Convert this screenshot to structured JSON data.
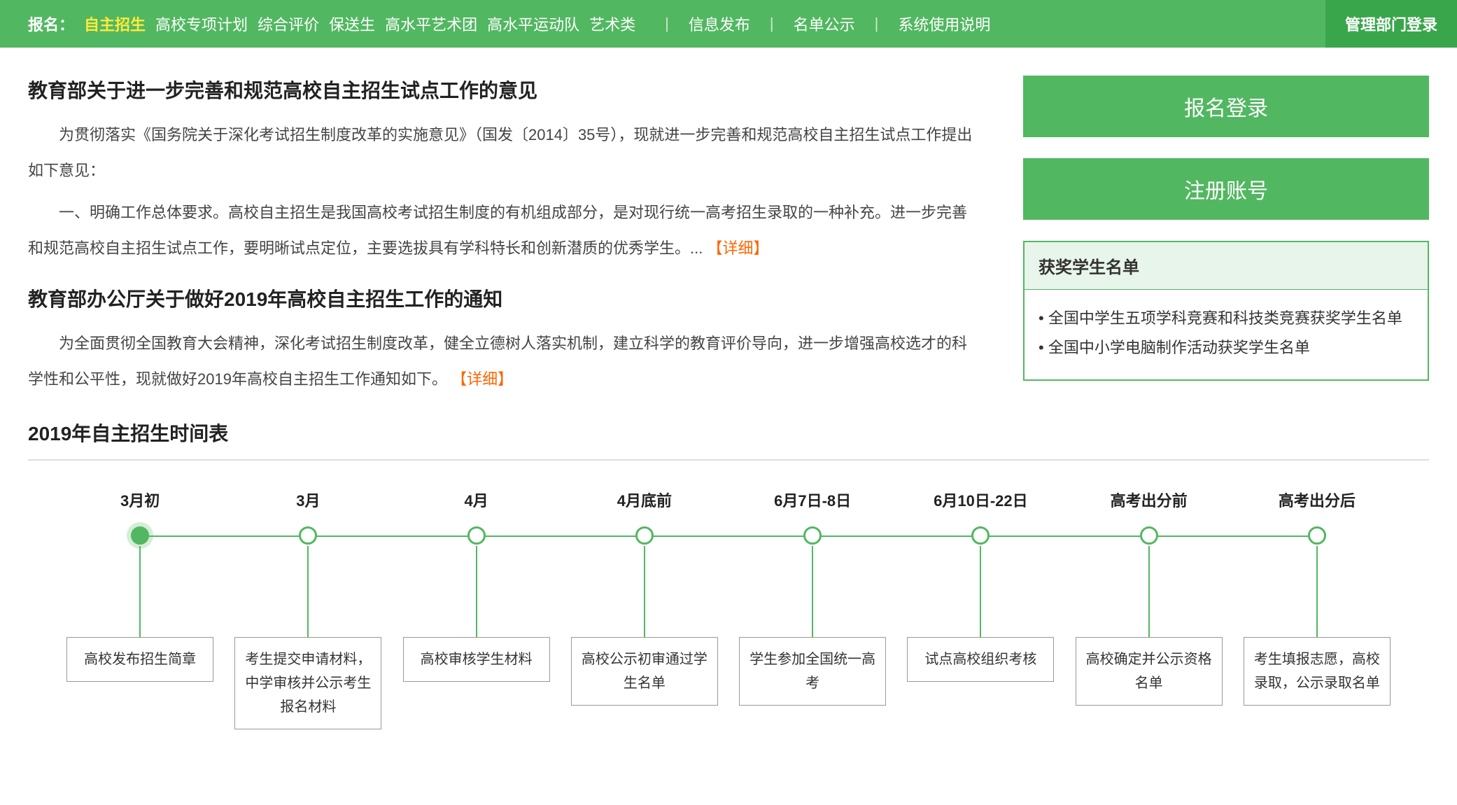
{
  "nav": {
    "label": "报名：",
    "items": [
      "自主招生",
      "高校专项计划",
      "综合评价",
      "保送生",
      "高水平艺术团",
      "高水平运动队",
      "艺术类"
    ],
    "active_index": 0,
    "right_links": [
      "信息发布",
      "名单公示",
      "系统使用说明"
    ],
    "admin_login": "管理部门登录"
  },
  "articles": [
    {
      "title": "教育部关于进一步完善和规范高校自主招生试点工作的意见",
      "paras": [
        "为贯彻落实《国务院关于深化考试招生制度改革的实施意见》（国发〔2014〕35号），现就进一步完善和规范高校自主招生试点工作提出如下意见：",
        "一、明确工作总体要求。高校自主招生是我国高校考试招生制度的有机组成部分，是对现行统一高考招生录取的一种补充。进一步完善和规范高校自主招生试点工作，要明晰试点定位，主要选拔具有学科特长和创新潜质的优秀学生。..."
      ],
      "detail": "详细"
    },
    {
      "title": "教育部办公厅关于做好2019年高校自主招生工作的通知",
      "paras": [
        "为全面贯彻全国教育大会精神，深化考试招生制度改革，健全立德树人落实机制，建立科学的教育评价导向，进一步增强高校选才的科学性和公平性，现就做好2019年高校自主招生工作通知如下。"
      ],
      "detail": "详细"
    }
  ],
  "sidebar": {
    "login_btn": "报名登录",
    "register_btn": "注册账号",
    "award_title": "获奖学生名单",
    "award_items": [
      "全国中学生五项学科竞赛和科技类竞赛获奖学生名单",
      "全国中小学电脑制作活动获奖学生名单"
    ]
  },
  "timeline": {
    "title": "2019年自主招生时间表",
    "steps": [
      {
        "label": "3月初",
        "desc": "高校发布招生简章",
        "filled": true
      },
      {
        "label": "3月",
        "desc": "考生提交申请材料，中学审核并公示考生报名材料",
        "filled": false
      },
      {
        "label": "4月",
        "desc": "高校审核学生材料",
        "filled": false
      },
      {
        "label": "4月底前",
        "desc": "高校公示初审通过学生名单",
        "filled": false
      },
      {
        "label": "6月7日-8日",
        "desc": "学生参加全国统一高考",
        "filled": false
      },
      {
        "label": "6月10日-22日",
        "desc": "试点高校组织考核",
        "filled": false
      },
      {
        "label": "高考出分前",
        "desc": "高校确定并公示资格名单",
        "filled": false
      },
      {
        "label": "高考出分后",
        "desc": "考生填报志愿，高校录取，公示录取名单",
        "filled": false
      }
    ]
  },
  "colors": {
    "primary": "#52b761",
    "primary_dark": "#3aa64b",
    "active_text": "#ffeb3b",
    "detail_link": "#ff6600",
    "border_gray": "#999999"
  }
}
